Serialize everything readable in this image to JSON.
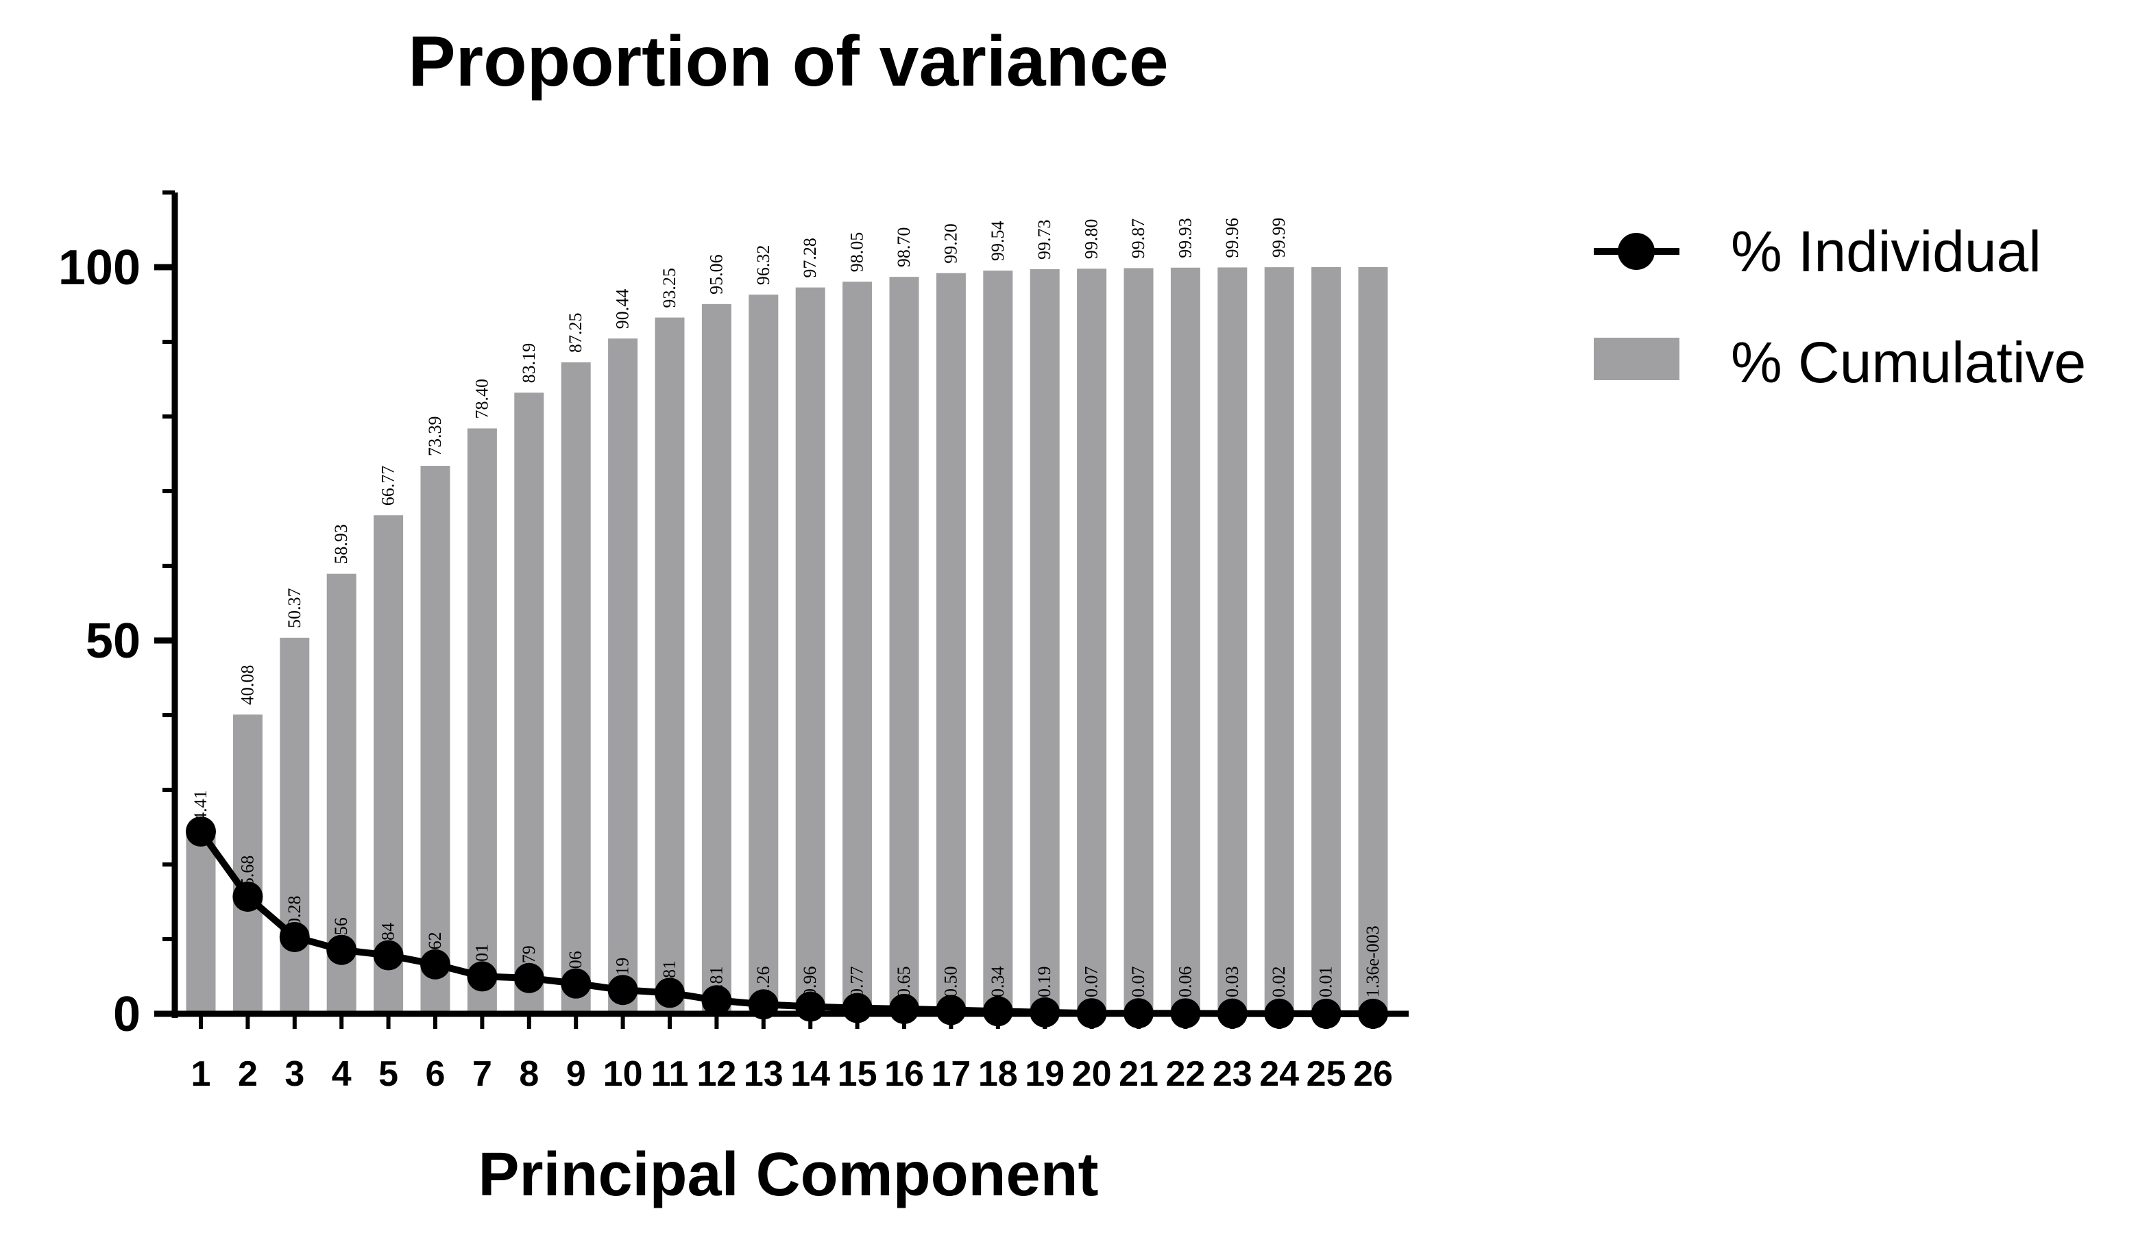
{
  "chart_data": {
    "type": "bar",
    "title": "Proportion of variance",
    "xlabel": "Principal Component",
    "ylabel": "",
    "ylim": [
      0,
      110
    ],
    "yticks": [
      "0",
      "50",
      "100"
    ],
    "ytick_values": [
      0,
      50,
      100
    ],
    "categories": [
      "1",
      "2",
      "3",
      "4",
      "5",
      "6",
      "7",
      "8",
      "9",
      "10",
      "11",
      "12",
      "13",
      "14",
      "15",
      "16",
      "17",
      "18",
      "19",
      "20",
      "21",
      "22",
      "23",
      "24",
      "25",
      "26"
    ],
    "series": [
      {
        "name": "% Individual",
        "type": "line",
        "color": "#000000",
        "values": [
          24.41,
          15.68,
          10.28,
          8.56,
          7.84,
          6.62,
          5.01,
          4.79,
          4.06,
          3.19,
          2.81,
          1.81,
          1.26,
          0.96,
          0.77,
          0.65,
          0.5,
          0.34,
          0.19,
          0.07,
          0.07,
          0.06,
          0.03,
          0.02,
          0.01,
          0.00136
        ],
        "labels": [
          "24.41",
          "15.68",
          "10.28",
          "8.56",
          "7.84",
          "6.62",
          "5.01",
          "4.79",
          "4.06",
          "3.19",
          "2.81",
          "1.81",
          "1.26",
          "0.96",
          "0.77",
          "0.65",
          "0.50",
          "0.34",
          "0.19",
          "0.07",
          "0.07",
          "0.06",
          "0.03",
          "0.02",
          "0.01",
          "1.36e-003"
        ]
      },
      {
        "name": "% Cumulative",
        "type": "bar",
        "color": "#a0a0a3",
        "values": [
          24.41,
          40.08,
          50.37,
          58.93,
          66.77,
          73.39,
          78.4,
          83.19,
          87.25,
          90.44,
          93.25,
          95.06,
          96.32,
          97.28,
          98.05,
          98.7,
          99.2,
          99.54,
          99.73,
          99.8,
          99.87,
          99.93,
          99.96,
          99.99,
          100,
          100
        ],
        "labels": [
          "",
          "40.08",
          "50.37",
          "58.93",
          "66.77",
          "73.39",
          "78.40",
          "83.19",
          "87.25",
          "90.44",
          "93.25",
          "95.06",
          "96.32",
          "97.28",
          "98.05",
          "98.70",
          "99.20",
          "99.54",
          "99.73",
          "99.80",
          "99.87",
          "99.93",
          "99.96",
          "99.99",
          "",
          ""
        ]
      }
    ],
    "legend": {
      "position": "right",
      "entries": [
        "% Individual",
        "% Cumulative"
      ]
    },
    "grid": false
  }
}
